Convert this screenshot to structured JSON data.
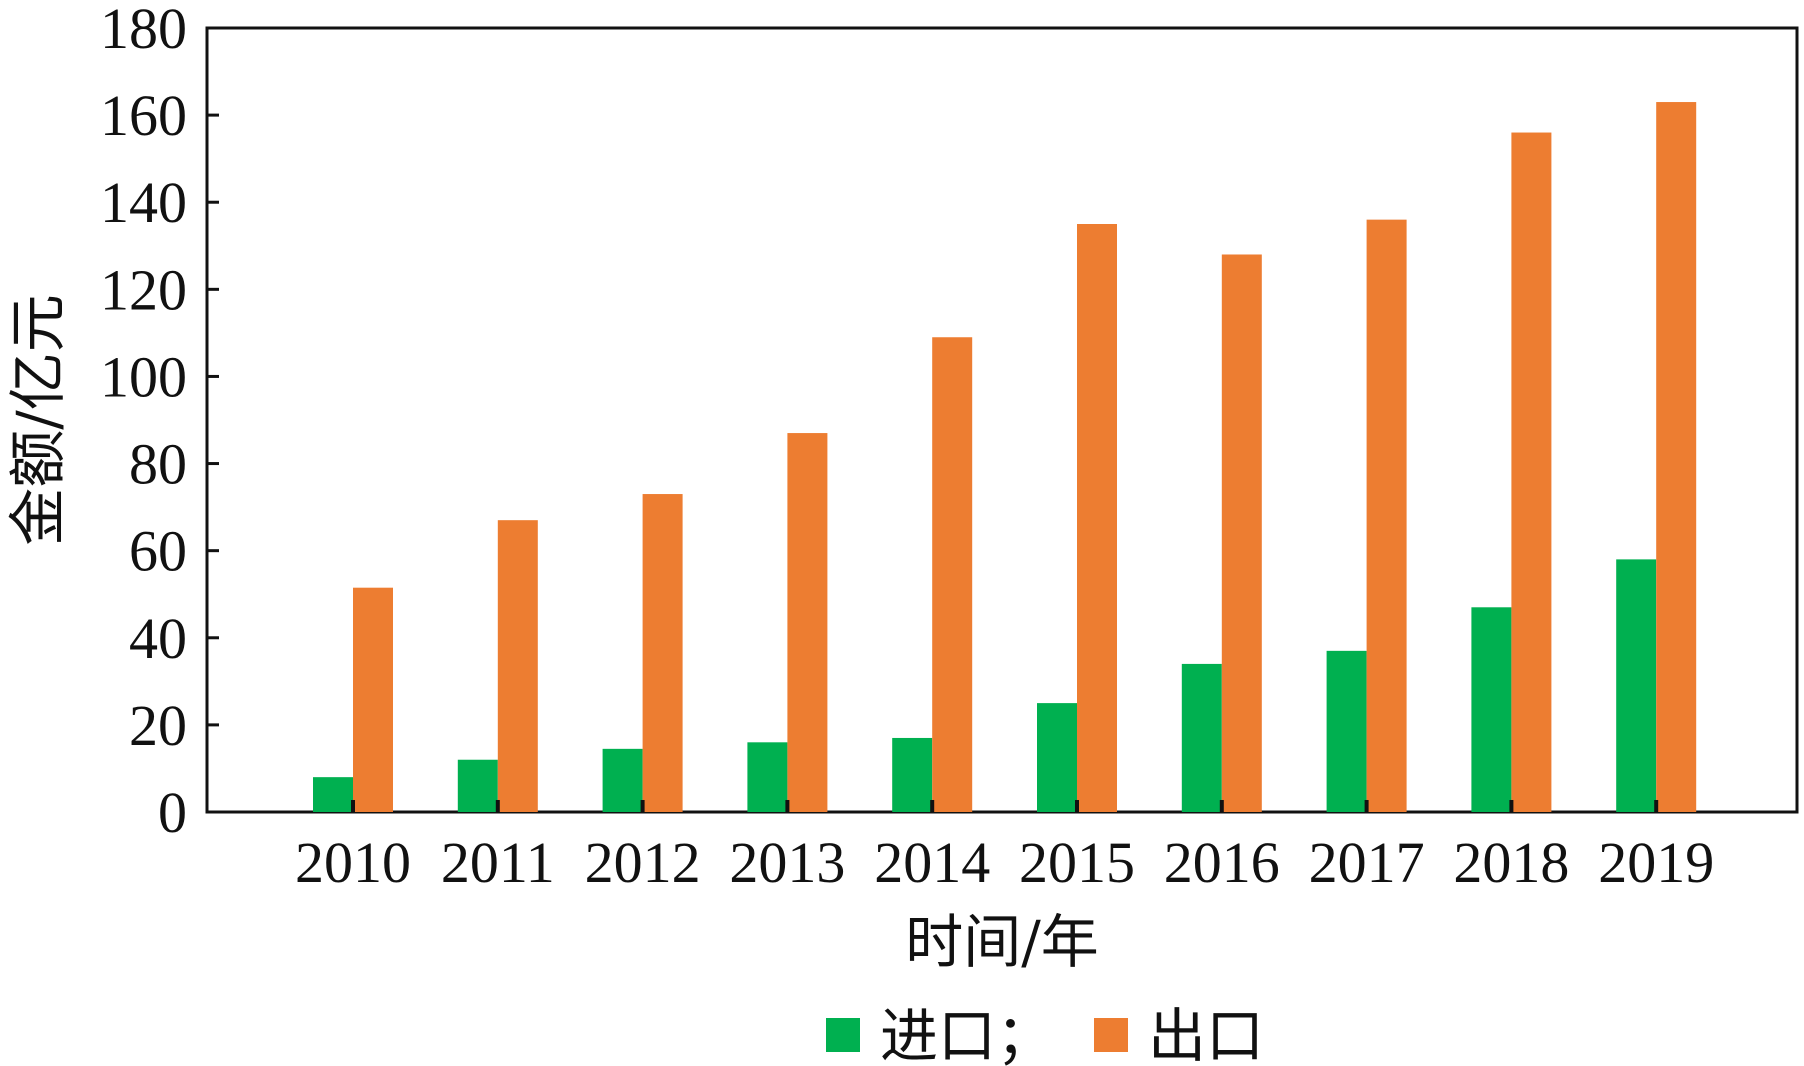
{
  "chart_data": {
    "type": "bar",
    "categories": [
      "2010",
      "2011",
      "2012",
      "2013",
      "2014",
      "2015",
      "2016",
      "2017",
      "2018",
      "2019"
    ],
    "series": [
      {
        "name": "进口；",
        "color": "#00b050",
        "values": [
          8,
          12,
          14.5,
          16,
          17,
          25,
          34,
          37,
          47,
          58
        ]
      },
      {
        "name": "出口",
        "color": "#ed7d31",
        "values": [
          51.5,
          67,
          73,
          87,
          109,
          135,
          128,
          136,
          156,
          163
        ]
      }
    ],
    "xlabel": "时间/年",
    "ylabel": "金额/亿元",
    "ylim": [
      0,
      180
    ],
    "yticks": [
      "0",
      "20",
      "40",
      "60",
      "80",
      "100",
      "120",
      "140",
      "160",
      "180"
    ],
    "grid": false,
    "legend_position": "bottom"
  }
}
